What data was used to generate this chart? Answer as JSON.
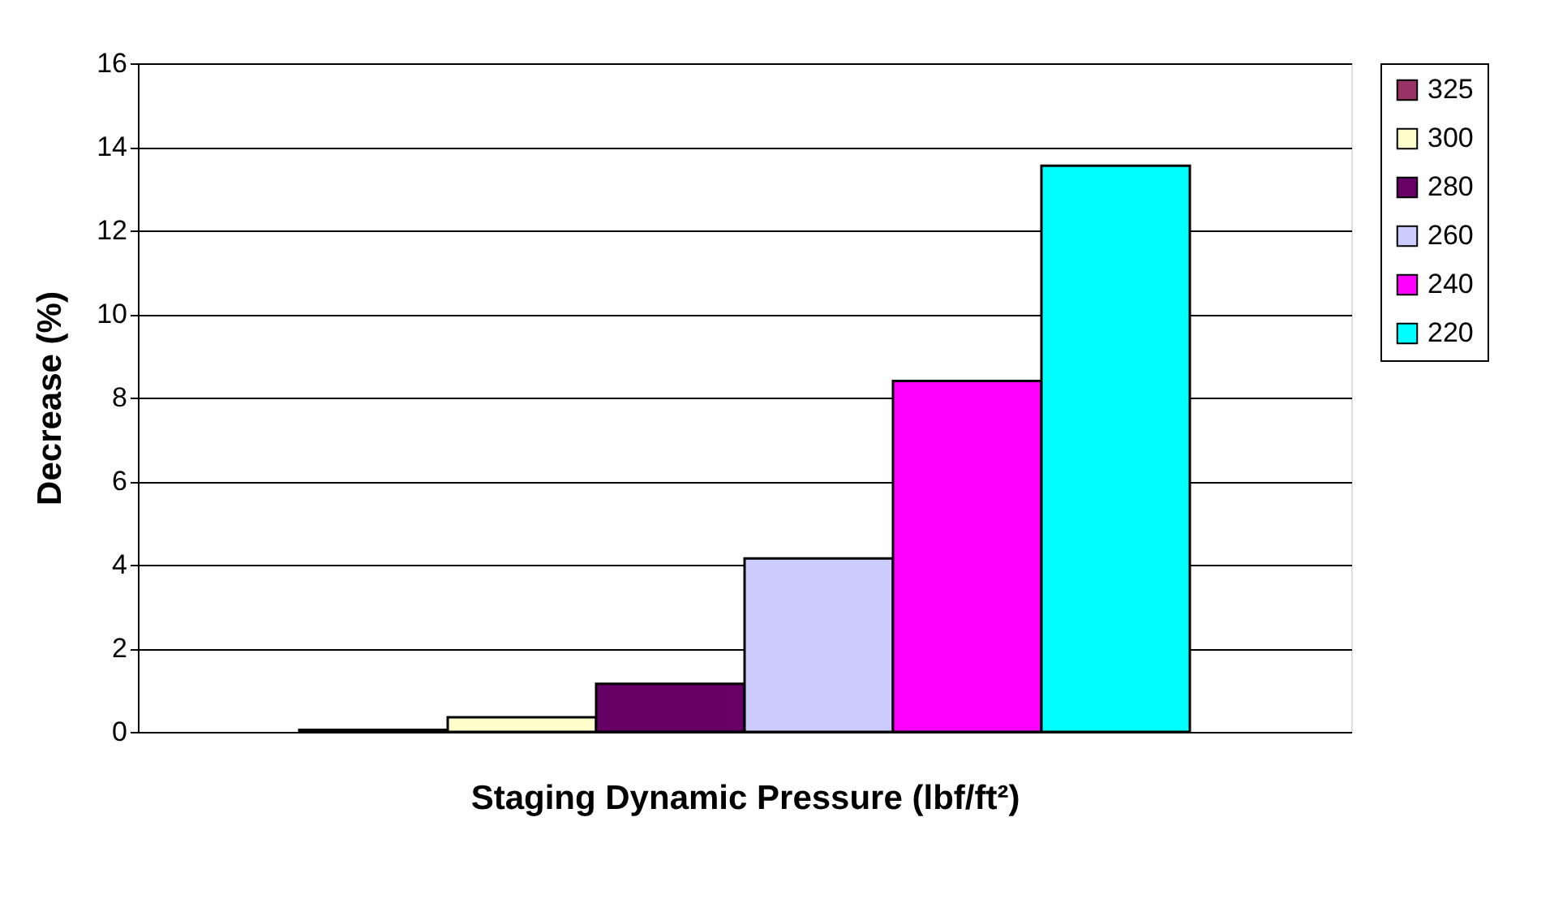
{
  "chart_data": {
    "type": "bar",
    "xlabel": "Staging Dynamic Pressure (lbf/ft²)",
    "ylabel": "Decrease (%)",
    "categories": [
      null
    ],
    "series": [
      {
        "name": "325",
        "color": "#993366",
        "values": [
          0.05
        ]
      },
      {
        "name": "300",
        "color": "#ffffcc",
        "values": [
          0.35
        ]
      },
      {
        "name": "280",
        "color": "#660066",
        "values": [
          1.15
        ]
      },
      {
        "name": "260",
        "color": "#ccccff",
        "values": [
          4.15
        ]
      },
      {
        "name": "240",
        "color": "#ff00ff",
        "values": [
          8.4
        ]
      },
      {
        "name": "220",
        "color": "#00ffff",
        "values": [
          13.55
        ]
      }
    ],
    "ylim": [
      0,
      16
    ],
    "yticks": [
      0,
      2,
      4,
      6,
      8,
      10,
      12,
      14,
      16
    ],
    "grid": "y",
    "legend": "right",
    "tick_labels": "y"
  }
}
